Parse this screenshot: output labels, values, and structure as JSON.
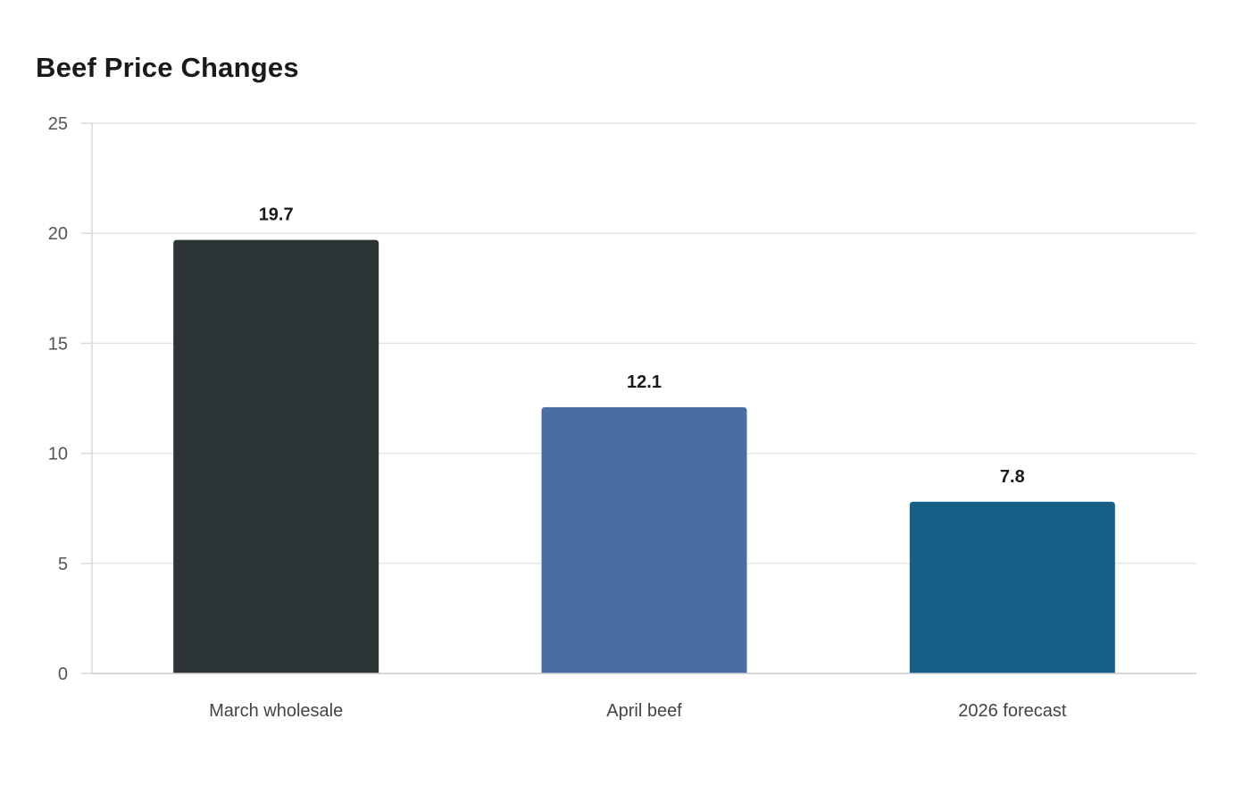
{
  "chart_data": {
    "type": "bar",
    "title": "Beef Price Changes",
    "categories": [
      "March wholesale",
      "April beef",
      "2026 forecast"
    ],
    "values": [
      19.7,
      12.1,
      7.8
    ],
    "value_labels": [
      "19.7",
      "12.1",
      "7.8"
    ],
    "colors": [
      "#2d3436",
      "#4a6ea3",
      "#165f87"
    ],
    "ylim": [
      0,
      25
    ],
    "yticks": [
      0,
      5,
      10,
      15,
      20,
      25
    ],
    "xlabel": "",
    "ylabel": "",
    "grid": true,
    "legend": "none"
  }
}
